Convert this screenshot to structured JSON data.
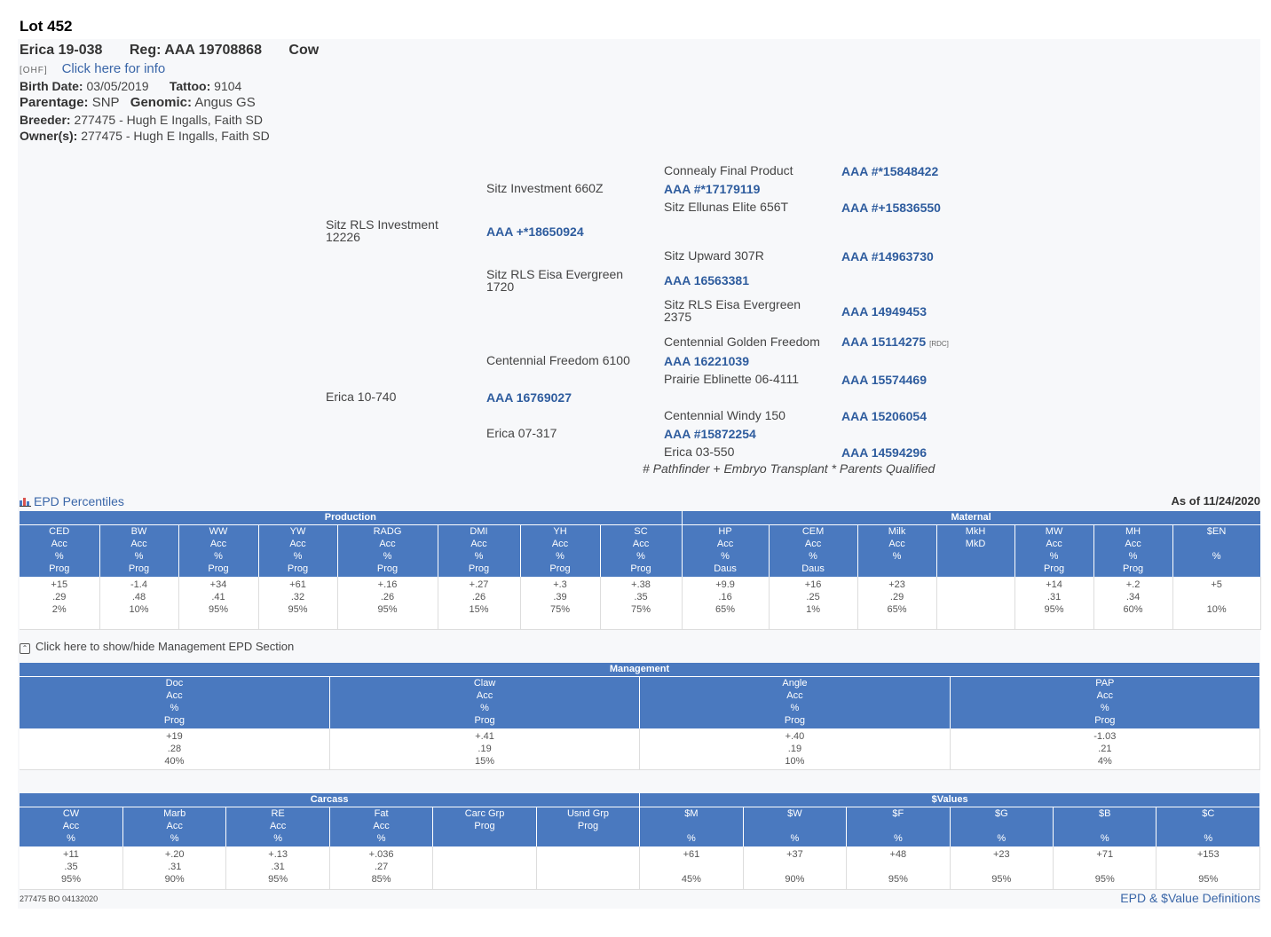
{
  "lot": "Lot 452",
  "animal": {
    "name": "Erica 19-038",
    "reg": "Reg: AAA 19708868",
    "sex": "Cow"
  },
  "ohf": {
    "tag": "[OHF]",
    "link": "Click here for info"
  },
  "birth": {
    "label": "Birth Date:",
    "value": "03/05/2019",
    "tattoo_label": "Tattoo:",
    "tattoo": "9104"
  },
  "parentage": {
    "label": "Parentage:",
    "value": "SNP",
    "genomic_label": "Genomic:",
    "genomic": "Angus GS"
  },
  "breeder": {
    "label": "Breeder:",
    "value": "277475 - Hugh E Ingalls, Faith SD"
  },
  "owner": {
    "label": "Owner(s):",
    "value": "277475 - Hugh E Ingalls, Faith SD"
  },
  "pedigree": {
    "sire": {
      "name": "Sitz RLS Investment 12226",
      "reg": "AAA +*18650924"
    },
    "sire_sire": {
      "name": "Sitz Investment 660Z",
      "reg": "AAA #*17179119"
    },
    "sire_dam": {
      "name": "Sitz RLS Eisa Evergreen 1720",
      "reg": "AAA 16563381"
    },
    "ssss": {
      "name": "Connealy Final Product",
      "reg": "AAA #*15848422"
    },
    "sssd": {
      "name": "Sitz Ellunas Elite 656T",
      "reg": "AAA #+15836550"
    },
    "ssds": {
      "name": "Sitz Upward 307R",
      "reg": "AAA #14963730"
    },
    "ssdd": {
      "name": "Sitz RLS Eisa Evergreen 2375",
      "reg": "AAA 14949453"
    },
    "dam": {
      "name": "Erica 10-740",
      "reg": "AAA 16769027"
    },
    "dam_sire": {
      "name": "Centennial Freedom 6100",
      "reg": "AAA 16221039"
    },
    "dam_dam": {
      "name": "Erica 07-317",
      "reg": "AAA #15872254"
    },
    "dsss": {
      "name": "Centennial Golden Freedom",
      "reg": "AAA 15114275",
      "tag": "[RDC]"
    },
    "dssd": {
      "name": "Prairie Eblinette 06-4111",
      "reg": "AAA 15574469"
    },
    "ddss": {
      "name": "Centennial Windy 150",
      "reg": "AAA 15206054"
    },
    "ddsd": {
      "name": "Erica 03-550",
      "reg": "AAA 14594296"
    },
    "legend": "# Pathfinder + Embryo Transplant * Parents Qualified"
  },
  "epd": {
    "title": "EPD Percentiles",
    "as_of": "As of 11/24/2020",
    "production_label": "Production",
    "maternal_label": "Maternal",
    "cols": [
      {
        "h": [
          "CED",
          "Acc",
          "%",
          "Prog"
        ],
        "v": [
          "+15",
          ".29",
          "2%"
        ]
      },
      {
        "h": [
          "BW",
          "Acc",
          "%",
          "Prog"
        ],
        "v": [
          "-1.4",
          ".48",
          "10%"
        ]
      },
      {
        "h": [
          "WW",
          "Acc",
          "%",
          "Prog"
        ],
        "v": [
          "+34",
          ".41",
          "95%"
        ]
      },
      {
        "h": [
          "YW",
          "Acc",
          "%",
          "Prog"
        ],
        "v": [
          "+61",
          ".32",
          "95%"
        ]
      },
      {
        "h": [
          "RADG",
          "Acc",
          "%",
          "Prog"
        ],
        "v": [
          "+.16",
          ".26",
          "95%"
        ]
      },
      {
        "h": [
          "DMI",
          "Acc",
          "%",
          "Prog"
        ],
        "v": [
          "+.27",
          ".26",
          "15%"
        ]
      },
      {
        "h": [
          "YH",
          "Acc",
          "%",
          "Prog"
        ],
        "v": [
          "+.3",
          ".39",
          "75%"
        ]
      },
      {
        "h": [
          "SC",
          "Acc",
          "%",
          "Prog"
        ],
        "v": [
          "+.38",
          ".35",
          "75%"
        ]
      },
      {
        "h": [
          "HP",
          "Acc",
          "%",
          "Daus"
        ],
        "v": [
          "+9.9",
          ".16",
          "65%"
        ]
      },
      {
        "h": [
          "CEM",
          "Acc",
          "%",
          "Daus"
        ],
        "v": [
          "+16",
          ".25",
          "1%"
        ]
      },
      {
        "h": [
          "Milk",
          "Acc",
          "%",
          ""
        ],
        "v": [
          "+23",
          ".29",
          "65%"
        ]
      },
      {
        "h": [
          "MkH",
          "MkD",
          "",
          ""
        ],
        "v": [
          "",
          "",
          ""
        ]
      },
      {
        "h": [
          "MW",
          "Acc",
          "%",
          "Prog"
        ],
        "v": [
          "+14",
          ".31",
          "95%"
        ]
      },
      {
        "h": [
          "MH",
          "Acc",
          "%",
          "Prog"
        ],
        "v": [
          "+.2",
          ".34",
          "60%"
        ]
      },
      {
        "h": [
          "$EN",
          "",
          "%",
          ""
        ],
        "v": [
          "+5",
          "",
          "10%"
        ]
      }
    ]
  },
  "toggle": {
    "icon": "⌃",
    "text": "Click here to show/hide Management EPD Section"
  },
  "management": {
    "label": "Management",
    "cols": [
      {
        "h": [
          "Doc",
          "Acc",
          "%",
          "Prog"
        ],
        "v": [
          "+19",
          ".28",
          "40%"
        ]
      },
      {
        "h": [
          "Claw",
          "Acc",
          "%",
          "Prog"
        ],
        "v": [
          "+.41",
          ".19",
          "15%"
        ]
      },
      {
        "h": [
          "Angle",
          "Acc",
          "%",
          "Prog"
        ],
        "v": [
          "+.40",
          ".19",
          "10%"
        ]
      },
      {
        "h": [
          "PAP",
          "Acc",
          "%",
          "Prog"
        ],
        "v": [
          "-1.03",
          ".21",
          "4%"
        ]
      }
    ]
  },
  "carcass": {
    "label": "Carcass",
    "values_label": "$Values",
    "cols": [
      {
        "h": [
          "CW",
          "Acc",
          "%"
        ],
        "v": [
          "+11",
          ".35",
          "95%"
        ]
      },
      {
        "h": [
          "Marb",
          "Acc",
          "%"
        ],
        "v": [
          "+.20",
          ".31",
          "90%"
        ]
      },
      {
        "h": [
          "RE",
          "Acc",
          "%"
        ],
        "v": [
          "+.13",
          ".31",
          "95%"
        ]
      },
      {
        "h": [
          "Fat",
          "Acc",
          "%"
        ],
        "v": [
          "+.036",
          ".27",
          "85%"
        ]
      },
      {
        "h": [
          "Carc Grp",
          "Prog",
          ""
        ],
        "v": [
          "",
          "",
          ""
        ]
      },
      {
        "h": [
          "Usnd Grp",
          "Prog",
          ""
        ],
        "v": [
          "",
          "",
          ""
        ]
      },
      {
        "h": [
          "$M",
          "",
          "%"
        ],
        "v": [
          "+61",
          "",
          "45%"
        ]
      },
      {
        "h": [
          "$W",
          "",
          "%"
        ],
        "v": [
          "+37",
          "",
          "90%"
        ]
      },
      {
        "h": [
          "$F",
          "",
          "%"
        ],
        "v": [
          "+48",
          "",
          "95%"
        ]
      },
      {
        "h": [
          "$G",
          "",
          "%"
        ],
        "v": [
          "+23",
          "",
          "95%"
        ]
      },
      {
        "h": [
          "$B",
          "",
          "%"
        ],
        "v": [
          "+71",
          "",
          "95%"
        ]
      },
      {
        "h": [
          "$C",
          "",
          "%"
        ],
        "v": [
          "+153",
          "",
          "95%"
        ]
      }
    ]
  },
  "footer": {
    "code": "277475 BO 04132020",
    "definitions": "EPD & $Value Definitions"
  },
  "colors": {
    "header_blue": "#4a79bf",
    "link_blue": "#3a66a8",
    "reg_blue": "#2e5c9e"
  }
}
